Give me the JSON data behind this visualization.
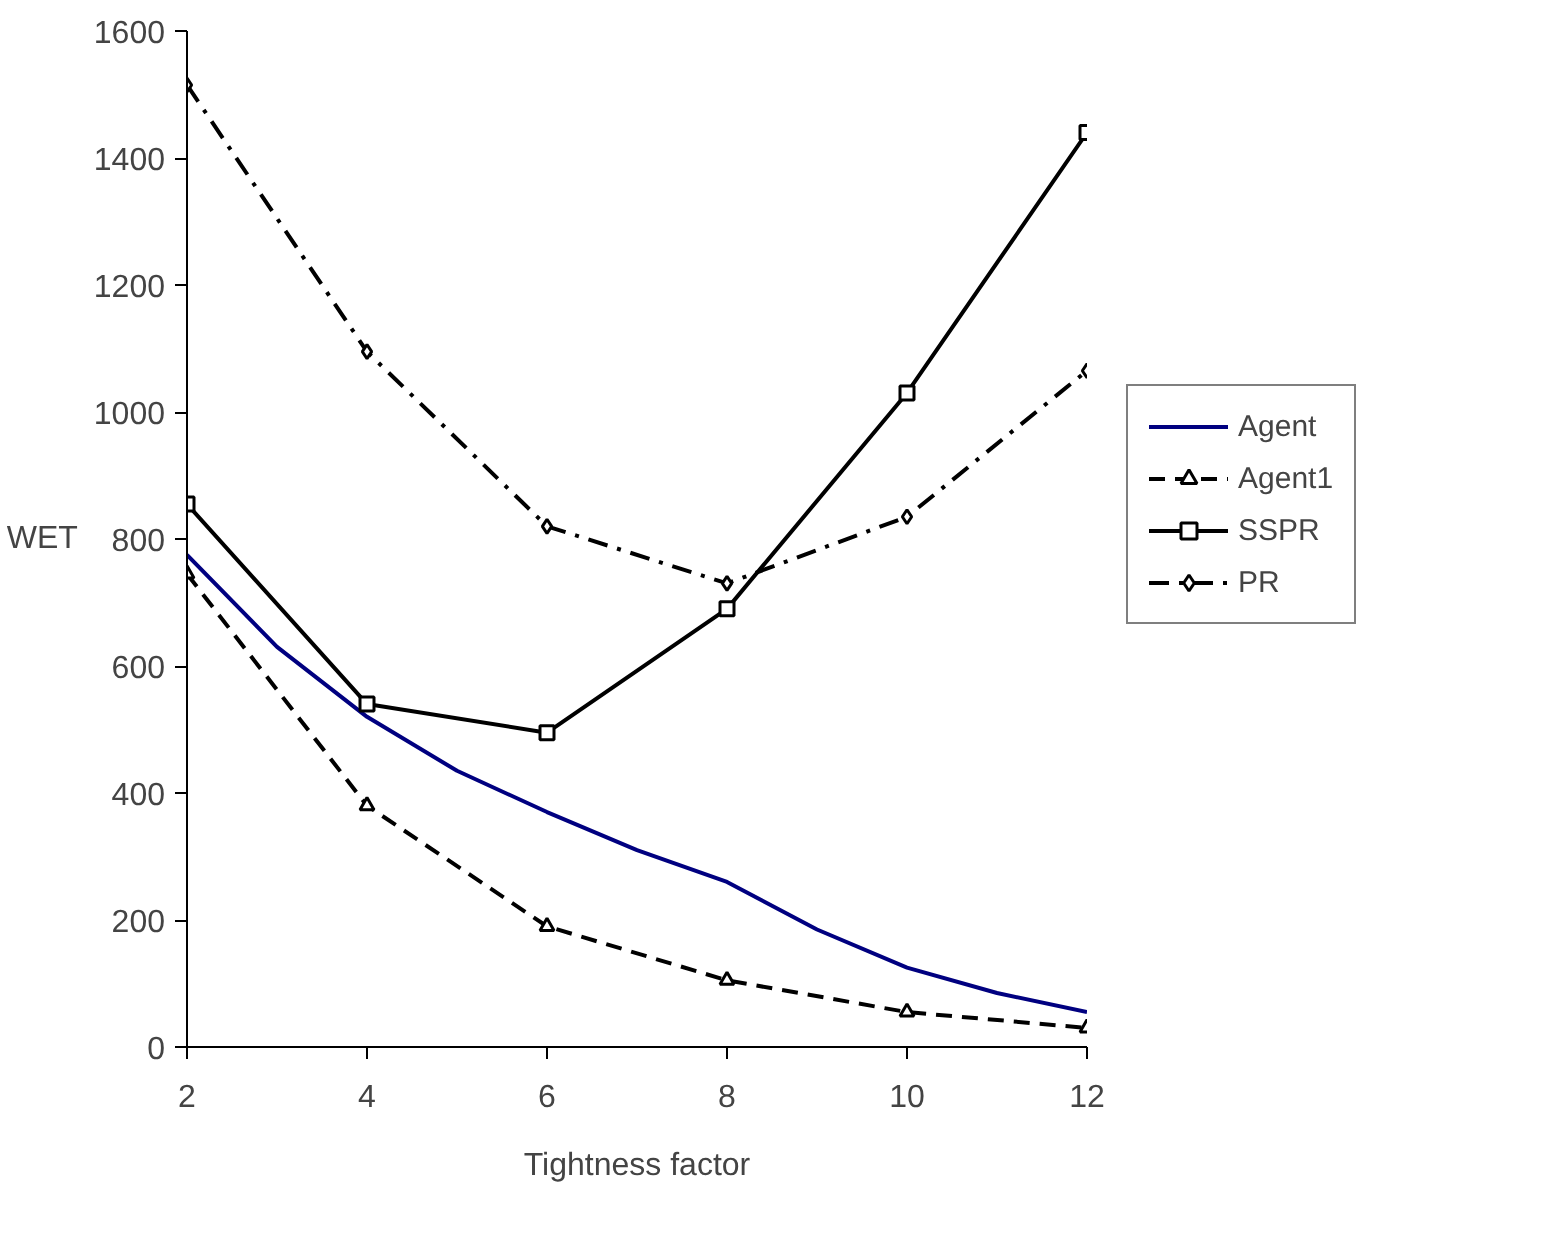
{
  "chart_data": {
    "type": "line",
    "xlabel": "Tightness factor",
    "ylabel": "WET",
    "xlim": [
      2,
      12
    ],
    "xticks": [
      2,
      4,
      6,
      8,
      10,
      12
    ],
    "ylim": [
      0,
      1600
    ],
    "yticks": [
      0,
      200,
      400,
      600,
      800,
      1000,
      1200,
      1400,
      1600
    ],
    "grid": false,
    "legend": "right",
    "series": [
      {
        "name": "Agent",
        "color": "#000080",
        "marker": "none",
        "line_style": "solid",
        "x": [
          2,
          3,
          4,
          5,
          6,
          7,
          8,
          9,
          10,
          11,
          12
        ],
        "values": [
          775,
          630,
          520,
          435,
          370,
          310,
          260,
          185,
          125,
          85,
          55
        ]
      },
      {
        "name": "Agent1",
        "color": "#000000",
        "marker": "triangle",
        "line_style": "dashed",
        "x": [
          2,
          4,
          6,
          8,
          10,
          12
        ],
        "values": [
          745,
          380,
          190,
          105,
          55,
          30
        ]
      },
      {
        "name": "SSPR",
        "color": "#000000",
        "marker": "square",
        "line_style": "solid",
        "x": [
          2,
          4,
          6,
          8,
          10,
          12
        ],
        "values": [
          855,
          540,
          495,
          690,
          1030,
          1440
        ]
      },
      {
        "name": "PR",
        "color": "#000000",
        "marker": "diamond",
        "line_style": "dashdot",
        "x": [
          2,
          4,
          6,
          8,
          10,
          12
        ],
        "values": [
          1515,
          1095,
          820,
          730,
          835,
          1065
        ]
      }
    ]
  }
}
